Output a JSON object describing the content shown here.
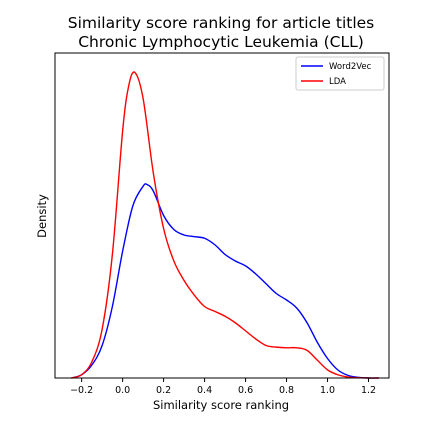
{
  "chart_data": {
    "type": "line",
    "title": [
      "Similarity score ranking for article titles",
      "Chronic Lymphocytic Leukemia (CLL)"
    ],
    "xlabel": "Similarity score ranking",
    "ylabel": "Density",
    "xlim": [
      -0.33,
      1.3
    ],
    "ylim": [
      0,
      1.0
    ],
    "xticks": [
      -0.2,
      0.0,
      0.2,
      0.4,
      0.6,
      0.8,
      1.0,
      1.2
    ],
    "xtick_labels": [
      "−0.2",
      "0.0",
      "0.2",
      "0.4",
      "0.6",
      "0.8",
      "1.0",
      "1.2"
    ],
    "yticks_shown": false,
    "grid": false,
    "legend": {
      "position": "top-right"
    },
    "series": [
      {
        "name": "Word2Vec",
        "color": "#0000ff",
        "x": [
          -0.25,
          -0.2,
          -0.15,
          -0.1,
          -0.05,
          0.0,
          0.05,
          0.1,
          0.12,
          0.15,
          0.2,
          0.25,
          0.3,
          0.35,
          0.4,
          0.45,
          0.5,
          0.55,
          0.6,
          0.65,
          0.7,
          0.75,
          0.8,
          0.85,
          0.9,
          0.95,
          1.0,
          1.05,
          1.1,
          1.15,
          1.2,
          1.25
        ],
        "y": [
          0.0,
          0.01,
          0.04,
          0.1,
          0.22,
          0.39,
          0.53,
          0.59,
          0.595,
          0.575,
          0.5,
          0.457,
          0.44,
          0.435,
          0.43,
          0.41,
          0.38,
          0.36,
          0.345,
          0.32,
          0.29,
          0.26,
          0.24,
          0.215,
          0.17,
          0.11,
          0.06,
          0.025,
          0.008,
          0.002,
          0.0,
          0.0
        ]
      },
      {
        "name": "LDA",
        "color": "#ff0000",
        "x": [
          -0.25,
          -0.2,
          -0.15,
          -0.1,
          -0.05,
          0.0,
          0.03,
          0.06,
          0.1,
          0.15,
          0.2,
          0.25,
          0.3,
          0.35,
          0.4,
          0.45,
          0.5,
          0.55,
          0.6,
          0.65,
          0.7,
          0.75,
          0.8,
          0.85,
          0.9,
          0.95,
          1.0,
          1.05,
          1.1,
          1.15,
          1.2,
          1.25
        ],
        "y": [
          0.0,
          0.01,
          0.05,
          0.15,
          0.38,
          0.76,
          0.9,
          0.94,
          0.86,
          0.63,
          0.46,
          0.36,
          0.3,
          0.255,
          0.22,
          0.205,
          0.19,
          0.17,
          0.145,
          0.12,
          0.1,
          0.095,
          0.093,
          0.093,
          0.085,
          0.055,
          0.025,
          0.01,
          0.003,
          0.001,
          0.0,
          0.0
        ]
      }
    ]
  }
}
